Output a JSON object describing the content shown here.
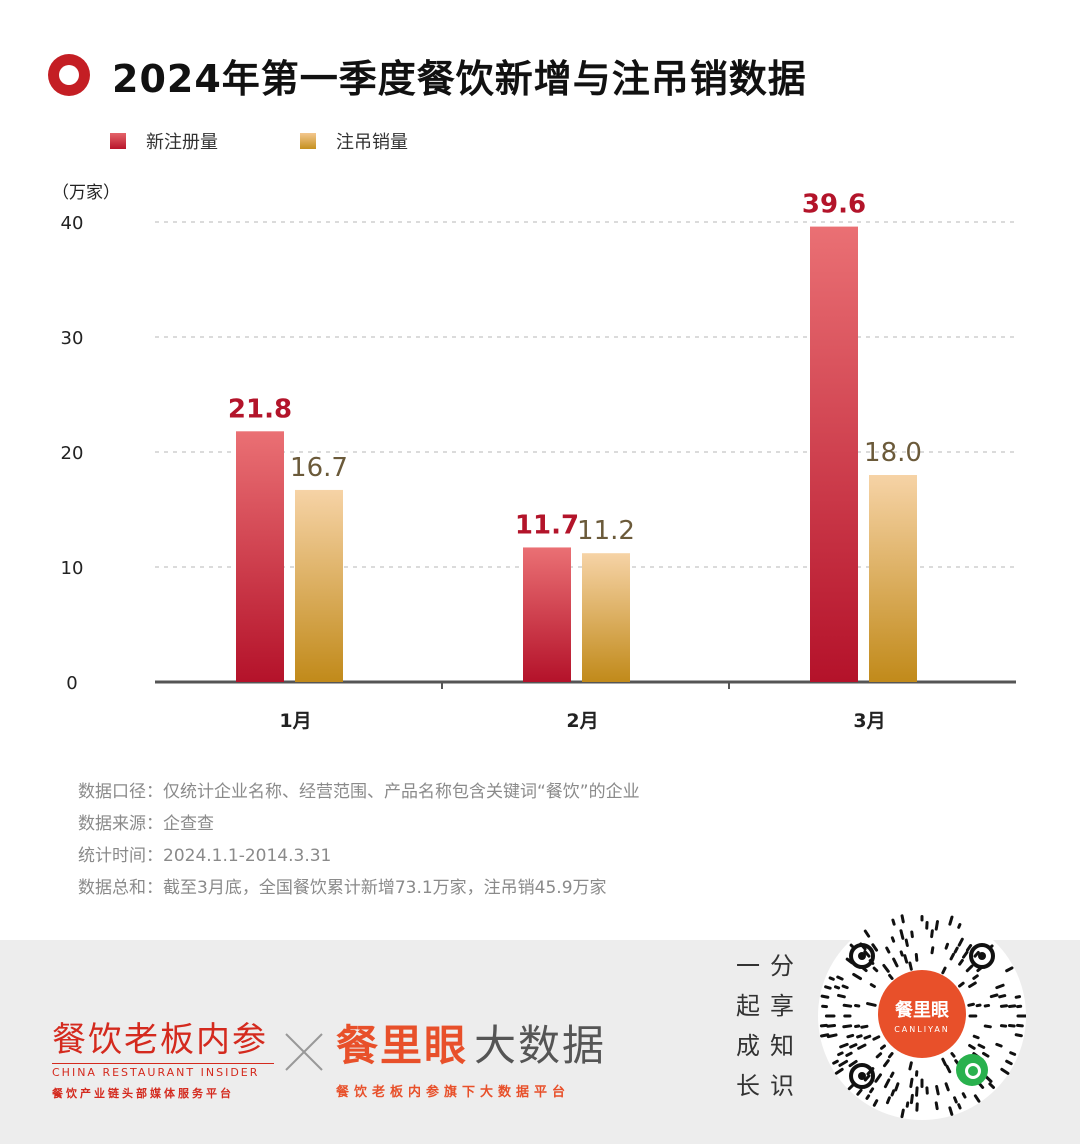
{
  "title": "2024年第一季度餐饮新增与注吊销数据",
  "colors": {
    "accent": "#c41e24",
    "series_red": "#c8202e",
    "series_gold": "#d2a04a",
    "label_red": "#b3142a",
    "label_gold": "#6b5a3a"
  },
  "chart_data": {
    "type": "bar",
    "title": "2024年第一季度餐饮新增与注吊销数据",
    "unit_label": "（万家）",
    "categories": [
      "1月",
      "2月",
      "3月"
    ],
    "series": [
      {
        "name": "新注册量",
        "values": [
          21.8,
          11.7,
          39.6
        ]
      },
      {
        "name": "注吊销量",
        "values": [
          16.7,
          11.2,
          18.0
        ]
      }
    ],
    "value_labels": [
      [
        "21.8",
        "11.7",
        "39.6"
      ],
      [
        "16.7",
        "11.2",
        "18.0"
      ]
    ],
    "yticks": [
      "0",
      "10",
      "20",
      "30",
      "40"
    ],
    "ylim": [
      0,
      40
    ],
    "grid": true,
    "legend": "top-left"
  },
  "notes": [
    "数据口径：仅统计企业名称、经营范围、产品名称包含关键词“餐饮”的企业",
    "数据来源：企查查",
    "统计时间：2024.1.1-2014.3.31",
    "数据总和：截至3月底，全国餐饮累计新增73.1万家，注吊销45.9万家"
  ],
  "footer": {
    "brand1_name": "餐饮老板内参",
    "brand1_en": "CHINA RESTAURANT INSIDER",
    "brand1_sub": "餐饮产业链头部媒体服务平台",
    "brand2_red": "餐里眼",
    "brand2_gray": "大数据",
    "brand2_sub": "餐饮老板内参旗下大数据平台",
    "slogan_col1": [
      "一",
      "起",
      "成",
      "长"
    ],
    "slogan_col2": [
      "分",
      "享",
      "知",
      "识"
    ],
    "qr_center_title": "餐里眼",
    "qr_center_sub": "CANLIYAN",
    "qr_icon": "mini-program-icon"
  }
}
